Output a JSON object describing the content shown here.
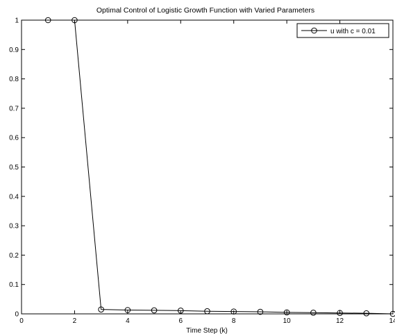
{
  "chart_data": {
    "type": "line",
    "title": "Optimal Control of Logistic Growth Function with Varied Parameters",
    "xlabel": "Time Step (k)",
    "ylabel": "",
    "xlim": [
      0,
      14
    ],
    "ylim": [
      0,
      1
    ],
    "xticks": [
      0,
      2,
      4,
      6,
      8,
      10,
      12,
      14
    ],
    "yticks": [
      0,
      0.1,
      0.2,
      0.3,
      0.4,
      0.5,
      0.6,
      0.7,
      0.8,
      0.9,
      1
    ],
    "grid": false,
    "legend_position": "top-right",
    "series": [
      {
        "name": "u with c = 0.01",
        "color": "#000000",
        "marker": "circle",
        "x": [
          1,
          2,
          3,
          4,
          5,
          6,
          7,
          8,
          9,
          10,
          11,
          12,
          13,
          14
        ],
        "y": [
          1,
          1,
          0.015,
          0.013,
          0.012,
          0.011,
          0.009,
          0.008,
          0.007,
          0.005,
          0.004,
          0.003,
          0.002,
          0
        ]
      }
    ]
  }
}
